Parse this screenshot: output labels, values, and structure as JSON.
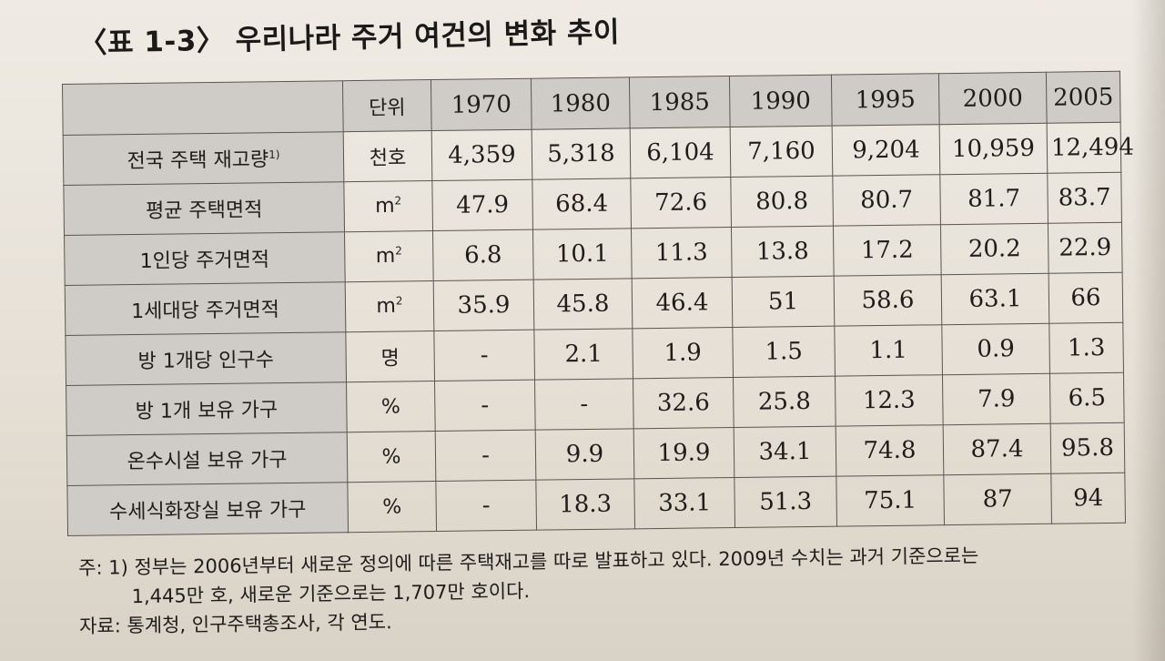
{
  "title": "〈표 1-3〉 우리나라 주거 여건의 변화 추이",
  "table": {
    "unit_header": "단위",
    "years": [
      "1970",
      "1980",
      "1985",
      "1990",
      "1995",
      "2000",
      "2005"
    ],
    "rows": [
      {
        "label": "전국 주택 재고량",
        "label_sup": "1)",
        "unit": "천호",
        "unit_sup": "",
        "values": [
          "4,359",
          "5,318",
          "6,104",
          "7,160",
          "9,204",
          "10,959",
          "12,494"
        ]
      },
      {
        "label": "평균 주택면적",
        "label_sup": "",
        "unit": "m",
        "unit_sup": "2",
        "values": [
          "47.9",
          "68.4",
          "72.6",
          "80.8",
          "80.7",
          "81.7",
          "83.7"
        ]
      },
      {
        "label": "1인당 주거면적",
        "label_sup": "",
        "unit": "m",
        "unit_sup": "2",
        "values": [
          "6.8",
          "10.1",
          "11.3",
          "13.8",
          "17.2",
          "20.2",
          "22.9"
        ]
      },
      {
        "label": "1세대당 주거면적",
        "label_sup": "",
        "unit": "m",
        "unit_sup": "2",
        "values": [
          "35.9",
          "45.8",
          "46.4",
          "51",
          "58.6",
          "63.1",
          "66"
        ]
      },
      {
        "label": "방 1개당 인구수",
        "label_sup": "",
        "unit": "명",
        "unit_sup": "",
        "values": [
          "-",
          "2.1",
          "1.9",
          "1.5",
          "1.1",
          "0.9",
          "1.3"
        ]
      },
      {
        "label": "방 1개 보유 가구",
        "label_sup": "",
        "unit": "%",
        "unit_sup": "",
        "values": [
          "-",
          "-",
          "32.6",
          "25.8",
          "12.3",
          "7.9",
          "6.5"
        ]
      },
      {
        "label": "온수시설 보유 가구",
        "label_sup": "",
        "unit": "%",
        "unit_sup": "",
        "values": [
          "-",
          "9.9",
          "19.9",
          "34.1",
          "74.8",
          "87.4",
          "95.8"
        ]
      },
      {
        "label": "수세식화장실 보유 가구",
        "label_sup": "",
        "unit": "%",
        "unit_sup": "",
        "values": [
          "-",
          "18.3",
          "33.1",
          "51.3",
          "75.1",
          "87",
          "94"
        ]
      }
    ]
  },
  "notes": {
    "line1": "주: 1) 정부는 2006년부터 새로운 정의에 따른 주택재고를 따로 발표하고 있다. 2009년 수치는 과거 기준으로는",
    "line2": "1,445만 호, 새로운 기준으로는 1,707만 호이다.",
    "source": "자료: 통계청, 인구주택총조사, 각 연도."
  }
}
